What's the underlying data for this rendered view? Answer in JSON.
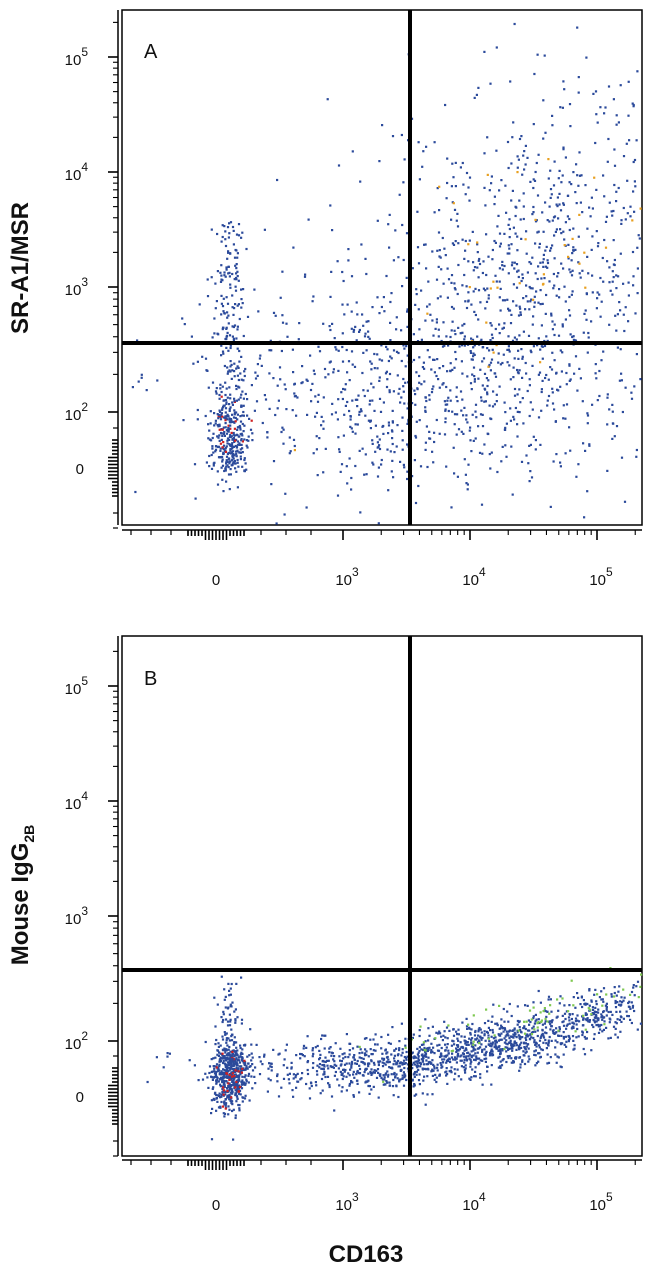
{
  "chart_data": [
    {
      "type": "scatter",
      "panel_label": "A",
      "xlabel": "",
      "ylabel": "SR-A1/MSR",
      "x_scale": "biexponential",
      "y_scale": "biexponential",
      "x_ticks": [
        "0",
        "10^3",
        "10^4",
        "10^5"
      ],
      "y_ticks": [
        "0",
        "10^2",
        "10^3",
        "10^4",
        "10^5"
      ],
      "quadrant_gate": {
        "x": 3000,
        "y": 350
      },
      "colors": {
        "low": "#2b4a9b",
        "mid": "#e8a020",
        "high": "#d02020"
      },
      "populations": [
        {
          "density": "low",
          "x_center": 100,
          "y_center": 50,
          "count": 200
        },
        {
          "density": "low",
          "x_center": 30000,
          "y_center": 2000,
          "count": 900
        },
        {
          "density": "low",
          "x_center": 3000,
          "y_center": 150,
          "count": 700
        },
        {
          "density": "mid",
          "x_center": 30000,
          "y_center": 2000,
          "count": 40
        },
        {
          "density": "high",
          "x_center": 100,
          "y_center": 60,
          "count": 20
        }
      ]
    },
    {
      "type": "scatter",
      "panel_label": "B",
      "xlabel": "CD163",
      "ylabel": "Mouse IgG",
      "ylabel_subscript": "2B",
      "x_scale": "biexponential",
      "y_scale": "biexponential",
      "x_ticks": [
        "0",
        "10^3",
        "10^4",
        "10^5"
      ],
      "y_ticks": [
        "0",
        "10^2",
        "10^3",
        "10^4",
        "10^5"
      ],
      "quadrant_gate": {
        "x": 3000,
        "y": 350
      },
      "colors": {
        "low": "#2b4a9b",
        "mid": "#7ec850",
        "high": "#d02020"
      },
      "populations": [
        {
          "density": "low",
          "x_center": 100,
          "y_center": 40,
          "count": 500
        },
        {
          "density": "low",
          "x_center": 10000,
          "y_center": 50,
          "count": 1500
        },
        {
          "density": "mid",
          "x_center": 30000,
          "y_center": 80,
          "count": 80
        },
        {
          "density": "high",
          "x_center": 100,
          "y_center": 40,
          "count": 30
        }
      ]
    }
  ]
}
